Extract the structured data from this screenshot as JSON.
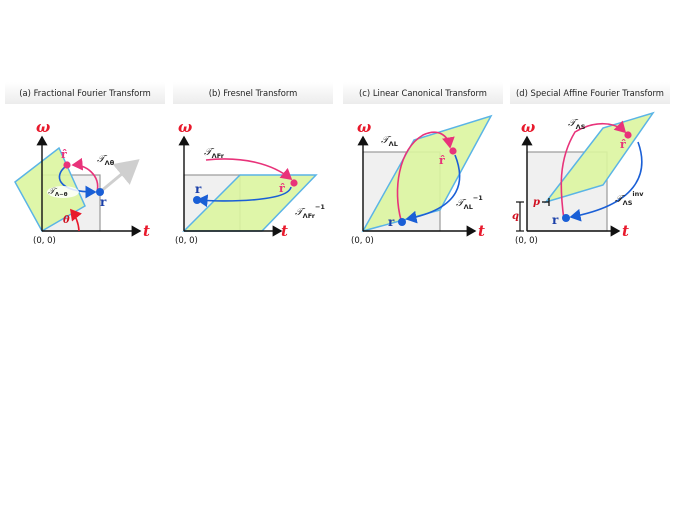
{
  "panels": [
    {
      "title": "(a) Fractional Fourier Transform",
      "origin": "(0, 0)",
      "t": "t",
      "w": "ω",
      "labels": {
        "T": "𝒯",
        "fwd_sub": "Λθ",
        "inv_sub": "Λ−θ",
        "angle": "θ"
      },
      "r": "r",
      "rhat": "r̂"
    },
    {
      "title": "(b) Fresnel Transform",
      "origin": "(0, 0)",
      "t": "t",
      "w": "ω",
      "labels": {
        "T": "𝒯",
        "fwd_sub": "ΛFr",
        "inv_sub": "ΛFr",
        "inv_sup": "−1"
      },
      "r": "r",
      "rhat": "r̂"
    },
    {
      "title": "(c) Linear Canonical Transform",
      "origin": "(0, 0)",
      "t": "t",
      "w": "ω",
      "labels": {
        "T": "𝒯",
        "fwd_sub": "ΛL",
        "inv_sub": "ΛL",
        "inv_sup": "−1"
      },
      "r": "r",
      "rhat": "r̂"
    },
    {
      "title": "(d) Special Affine Fourier Transform",
      "origin": "(0, 0)",
      "t": "t",
      "w": "ω",
      "labels": {
        "T": "𝒯",
        "fwd_sub": "ΛS",
        "inv_sub": "ΛS",
        "inv_sup": "inv",
        "p": "p",
        "q": "q"
      },
      "r": "r",
      "rhat": "r̂"
    }
  ],
  "colors": {
    "parallelogram_fill": "#dcf5a0",
    "parallelogram_stroke": "#5ab4e6",
    "square_fill": "#f0f0f0",
    "square_stroke": "#9a9a9a",
    "forward_arrow": "#e8337a",
    "inverse_arrow": "#1a5fd6",
    "axis_label": "#e8192c"
  }
}
